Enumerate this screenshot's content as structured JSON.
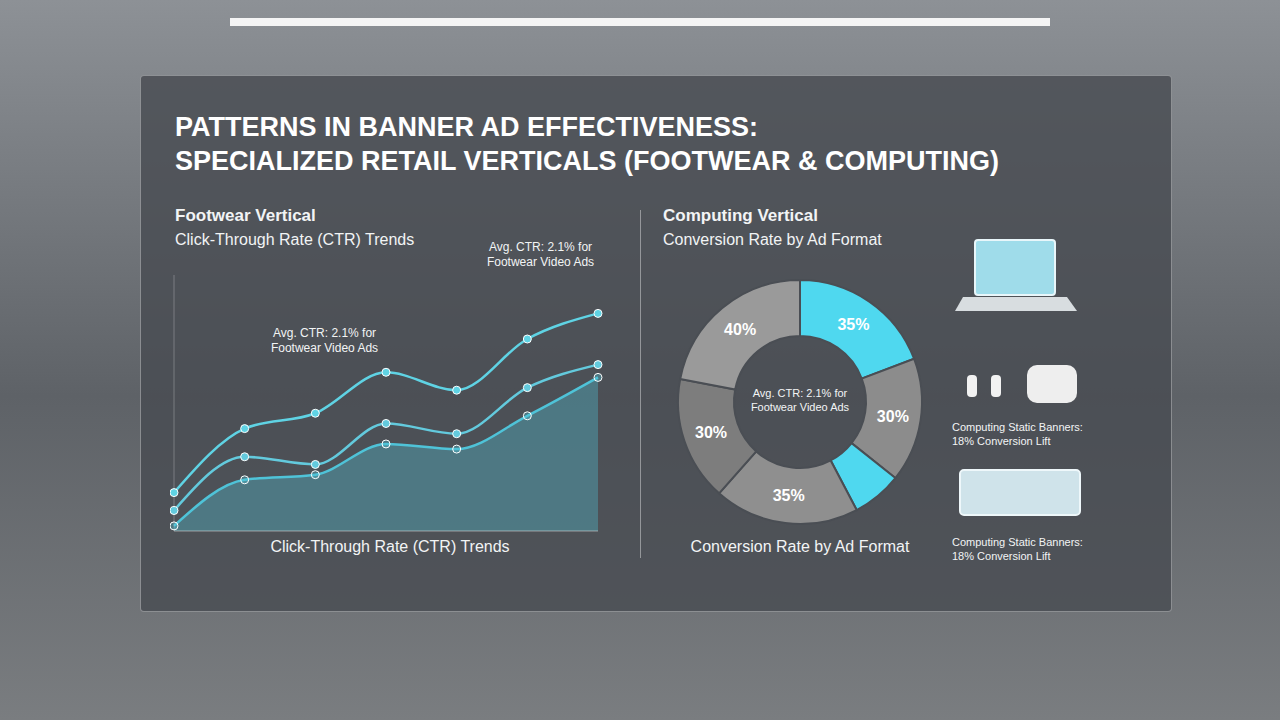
{
  "title": [
    "PATTERNS IN BANNER AD EFFECTIVENESS:",
    "SPECIALIZED RETAIL VERTICALS (FOOTWEAR & COMPUTING)"
  ],
  "chart_data": [
    {
      "type": "line",
      "title": "Footwear Vertical",
      "subtitle": "Click-Through Rate (CTR) Trends",
      "x_label": "Click-Through Rate (CTR) Trends",
      "categories": [
        null,
        null,
        null,
        null,
        null,
        null,
        null
      ],
      "series": [
        {
          "type": "line",
          "color": "#5fd3e4",
          "marker": "circle",
          "values": [
            1.5,
            4.0,
            4.6,
            6.2,
            5.5,
            7.5,
            8.5
          ]
        },
        {
          "type": "line",
          "color": "#63cadd",
          "marker": "circle",
          "values": [
            0.8,
            2.9,
            2.6,
            4.2,
            3.8,
            5.6,
            6.5
          ]
        },
        {
          "type": "area",
          "color": "#4fc3d8",
          "marker": "circle",
          "values": [
            0.2,
            2.0,
            2.2,
            3.4,
            3.2,
            4.5,
            6.0
          ]
        }
      ],
      "ylim": [
        0,
        10
      ],
      "tick_labels": false,
      "grid": false,
      "annotations": [
        "Avg. CTR: 2.1% for Footwear Video Ads",
        "Avg. CTR: 2.1% for Footwear Video Ads"
      ]
    },
    {
      "type": "pie",
      "title": "Computing Vertical",
      "subtitle": "Conversion Rate by Ad Format",
      "x_label": "Conversion Rate by Ad Format",
      "values": [
        35,
        30,
        12,
        35,
        30,
        40
      ],
      "value_labels": [
        "35%",
        "30%",
        null,
        "35%",
        "30%",
        "40%"
      ],
      "colors": [
        "#4fd8ef",
        "#8c8c8c",
        "#4fd8ef",
        "#8f8f8f",
        "#7d7d7d",
        "#9a9a9a"
      ],
      "data_labels": true,
      "center_label": "Avg. CTR: 2.1% for Footwear Video Ads",
      "annotations": [
        "Computing Static Banners: 18% Conversion Lift",
        "Computing Static Banners: 18% Conversion Lift"
      ]
    }
  ]
}
